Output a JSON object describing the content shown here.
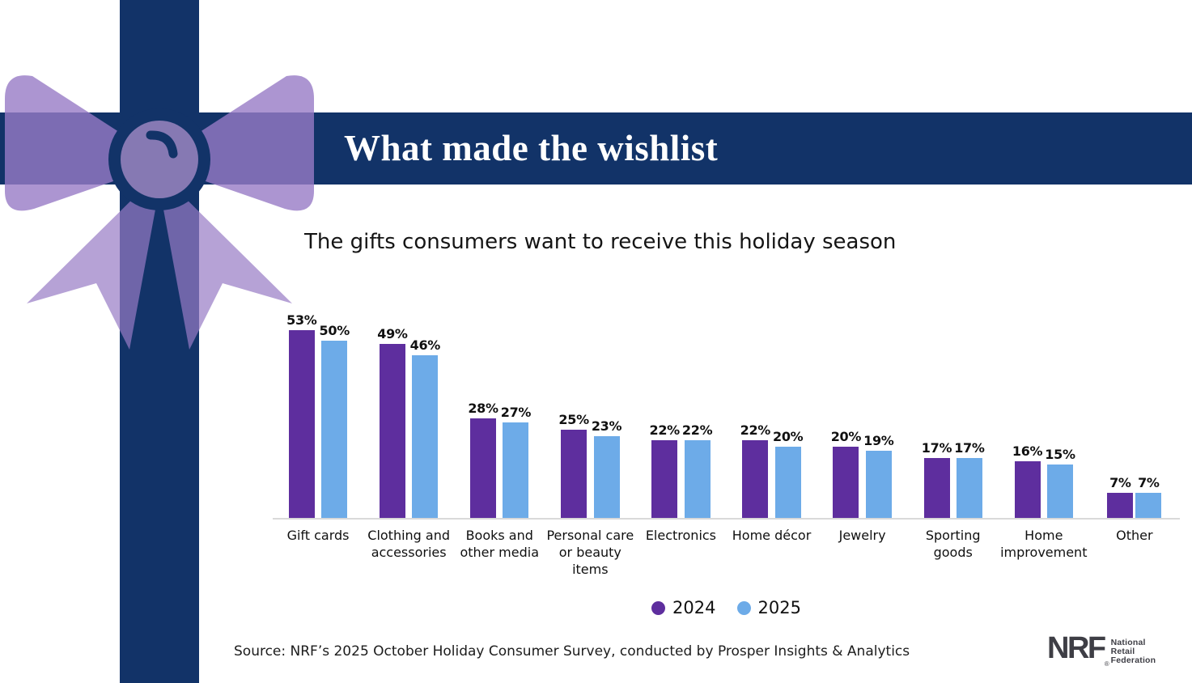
{
  "banner": {
    "title": "What made the wishlist"
  },
  "subtitle": "The gifts consumers want to receive this holiday season",
  "chart_data": {
    "type": "bar",
    "title": "The gifts consumers want to receive this holiday season",
    "categories": [
      "Gift cards",
      "Clothing and accessories",
      "Books and other media",
      "Personal care or beauty items",
      "Electronics",
      "Home décor",
      "Jewelry",
      "Sporting goods",
      "Home improvement",
      "Other"
    ],
    "series": [
      {
        "name": "2024",
        "color": "#5e2e9e",
        "values": [
          53,
          49,
          28,
          25,
          22,
          22,
          20,
          17,
          16,
          7
        ]
      },
      {
        "name": "2025",
        "color": "#6dabe8",
        "values": [
          50,
          46,
          27,
          23,
          22,
          20,
          19,
          17,
          15,
          7
        ]
      }
    ],
    "value_suffix": "%",
    "xlabel": "",
    "ylabel": "",
    "ylim": [
      0,
      57
    ],
    "grid": false,
    "data_labels": true,
    "legend_position": "bottom"
  },
  "source": "Source: NRF’s 2025 October Holiday Consumer Survey, conducted by Prosper Insights & Analytics",
  "logo": {
    "brand": "NRF",
    "registered_mark": "®",
    "tagline": "National Retail Federation"
  },
  "colors": {
    "banner_navy": "#123368",
    "ribbon_navy": "#123368",
    "bow_purple": "#977ac5",
    "bar_2024": "#5e2e9e",
    "bar_2025": "#6dabe8",
    "axis_line": "#d9d9d9",
    "title_text": "#ffffff",
    "logo_gray": "#3e3e45"
  }
}
